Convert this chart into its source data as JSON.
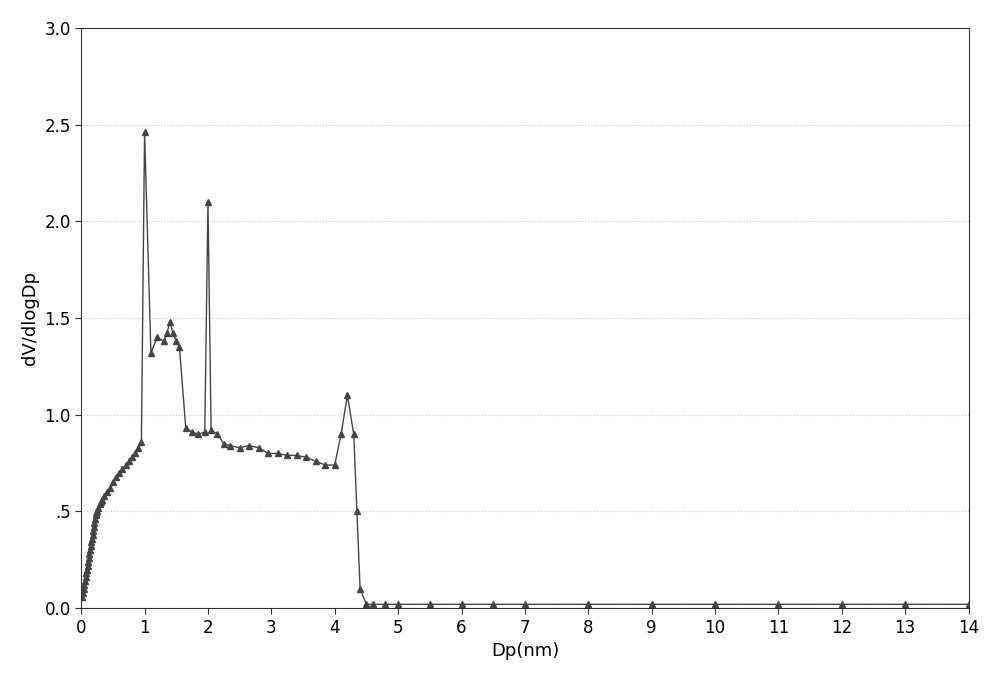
{
  "x": [
    0.02,
    0.03,
    0.04,
    0.05,
    0.06,
    0.07,
    0.08,
    0.09,
    0.1,
    0.11,
    0.12,
    0.13,
    0.14,
    0.15,
    0.16,
    0.17,
    0.18,
    0.19,
    0.2,
    0.21,
    0.22,
    0.23,
    0.24,
    0.25,
    0.27,
    0.29,
    0.31,
    0.33,
    0.36,
    0.4,
    0.45,
    0.5,
    0.55,
    0.6,
    0.65,
    0.7,
    0.75,
    0.8,
    0.85,
    0.9,
    0.95,
    1.0,
    1.1,
    1.2,
    1.3,
    1.35,
    1.4,
    1.45,
    1.5,
    1.55,
    1.65,
    1.75,
    1.85,
    1.95,
    2.0,
    2.05,
    2.15,
    2.25,
    2.35,
    2.5,
    2.65,
    2.8,
    2.95,
    3.1,
    3.25,
    3.4,
    3.55,
    3.7,
    3.85,
    4.0,
    4.1,
    4.2,
    4.3,
    4.35,
    4.4,
    4.5,
    4.6,
    4.8,
    5.0,
    5.5,
    6.0,
    6.5,
    7.0,
    8.0,
    9.0,
    10.0,
    11.0,
    12.0,
    13.0,
    14.0
  ],
  "y": [
    0.06,
    0.08,
    0.1,
    0.12,
    0.14,
    0.16,
    0.18,
    0.2,
    0.22,
    0.24,
    0.26,
    0.28,
    0.3,
    0.32,
    0.34,
    0.36,
    0.38,
    0.4,
    0.42,
    0.44,
    0.46,
    0.48,
    0.49,
    0.5,
    0.52,
    0.54,
    0.55,
    0.56,
    0.58,
    0.6,
    0.62,
    0.65,
    0.68,
    0.7,
    0.72,
    0.74,
    0.76,
    0.78,
    0.8,
    0.83,
    0.86,
    2.46,
    1.32,
    1.4,
    1.38,
    1.42,
    1.48,
    1.42,
    1.38,
    1.35,
    0.93,
    0.91,
    0.9,
    0.91,
    2.1,
    0.92,
    0.9,
    0.85,
    0.84,
    0.83,
    0.84,
    0.83,
    0.8,
    0.8,
    0.79,
    0.79,
    0.78,
    0.76,
    0.74,
    0.74,
    0.9,
    1.1,
    0.9,
    0.5,
    0.1,
    0.02,
    0.02,
    0.02,
    0.02,
    0.02,
    0.02,
    0.02,
    0.02,
    0.02,
    0.02,
    0.02,
    0.02,
    0.02,
    0.02,
    0.02
  ],
  "xlabel": "Dp(nm)",
  "ylabel": "dV/dlogDp",
  "xlim": [
    0,
    14
  ],
  "ylim": [
    0.0,
    3.0
  ],
  "xticks": [
    0,
    1,
    2,
    3,
    4,
    5,
    6,
    7,
    8,
    9,
    10,
    11,
    12,
    13,
    14
  ],
  "yticks": [
    0.0,
    0.5,
    1.0,
    1.5,
    2.0,
    2.5,
    3.0
  ],
  "ytick_labels": [
    "0.0",
    ".5",
    "1.0",
    "1.5",
    "2.0",
    "2.5",
    "3.0"
  ],
  "line_color": "#444444",
  "marker": "^",
  "marker_size": 4,
  "background_color": "#ffffff",
  "fig_background": "#ffffff",
  "grid_color": "#cccccc",
  "grid_style": "dotted"
}
